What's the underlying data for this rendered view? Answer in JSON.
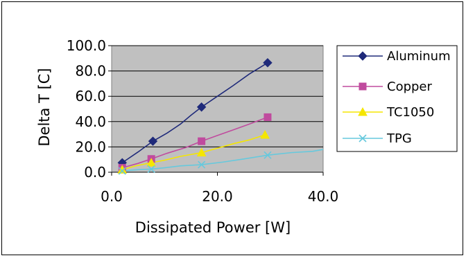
{
  "chart_data": {
    "type": "line",
    "xlabel": "Dissipated Power  [W]",
    "ylabel": "Delta T  [C]",
    "xlim": [
      0,
      40
    ],
    "ylim": [
      0,
      100
    ],
    "x_ticks": [
      "0.0",
      "20.0",
      "40.0"
    ],
    "y_ticks": [
      "0.0",
      "20.0",
      "40.0",
      "60.0",
      "80.0",
      "100.0"
    ],
    "grid": "horizontal",
    "legend_position": "right",
    "plot_background": "#c0c0c0",
    "series": [
      {
        "name": "Aluminum",
        "color": "#1f2a7a",
        "marker": "diamond",
        "x": [
          2,
          7.8,
          17,
          29.5
        ],
        "y": [
          7.5,
          24.5,
          51.5,
          86.5
        ],
        "line_x": [
          2,
          5,
          7.8,
          10.5,
          13,
          15,
          17,
          20,
          23,
          26,
          29.5
        ],
        "line_y": [
          7.5,
          16,
          24.5,
          31,
          38,
          45,
          51.5,
          60,
          68.5,
          77.5,
          86.5
        ]
      },
      {
        "name": "Copper",
        "color": "#c04b9e",
        "marker": "square",
        "x": [
          2,
          7.5,
          17,
          29.5
        ],
        "y": [
          3.5,
          10.5,
          24.5,
          43.5
        ],
        "line_x": [
          2,
          5,
          7.5,
          10.5,
          14,
          17,
          20,
          23,
          26,
          29.5
        ],
        "line_y": [
          3.5,
          7,
          10.5,
          15,
          19.5,
          24.5,
          29,
          33.5,
          38,
          43.5
        ]
      },
      {
        "name": "TC1050",
        "color": "#f5e600",
        "marker": "triangle",
        "x": [
          2,
          7.5,
          17,
          29
        ],
        "y": [
          2,
          7.5,
          15.5,
          29.5
        ],
        "line_x": [
          2,
          4.5,
          7.5,
          10,
          13,
          17,
          20,
          23,
          26,
          29
        ],
        "line_y": [
          2,
          5,
          7.5,
          9.5,
          12.5,
          15.5,
          19,
          22.5,
          25.5,
          29.5
        ]
      },
      {
        "name": "TPG",
        "color": "#66c9dd",
        "marker": "x",
        "x": [
          2,
          7.5,
          17,
          29.5
        ],
        "y": [
          1,
          2.5,
          6,
          13.5
        ],
        "line_x": [
          2,
          5,
          7.5,
          10,
          13,
          17,
          21,
          25,
          29.5,
          34,
          38,
          40
        ],
        "line_y": [
          1,
          2,
          2.5,
          3.5,
          5,
          6,
          8,
          10.5,
          13.5,
          15.5,
          16.5,
          18
        ]
      }
    ]
  }
}
